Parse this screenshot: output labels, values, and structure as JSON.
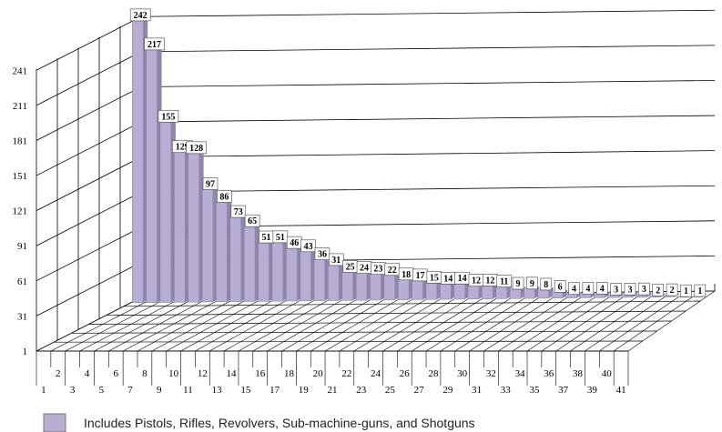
{
  "chart_data": {
    "type": "bar",
    "categories": [
      "1",
      "2",
      "3",
      "4",
      "5",
      "6",
      "7",
      "8",
      "9",
      "10",
      "11",
      "12",
      "13",
      "14",
      "15",
      "16",
      "17",
      "18",
      "19",
      "20",
      "21",
      "22",
      "23",
      "24",
      "25",
      "26",
      "27",
      "28",
      "29",
      "30",
      "31",
      "32",
      "33",
      "34",
      "35",
      "36",
      "37",
      "38",
      "39",
      "40",
      "41"
    ],
    "values": [
      242,
      217,
      155,
      129,
      128,
      97,
      86,
      73,
      65,
      51,
      51,
      46,
      43,
      36,
      31,
      25,
      24,
      23,
      22,
      18,
      17,
      15,
      14,
      14,
      12,
      12,
      11,
      9,
      9,
      8,
      6,
      4,
      4,
      4,
      3,
      3,
      3,
      2,
      2,
      1,
      1
    ],
    "yticks": [
      1,
      31,
      61,
      91,
      121,
      151,
      181,
      211,
      241
    ],
    "ylim": [
      1,
      242
    ],
    "grid": true,
    "colors": {
      "bar_front": "#b8aed4",
      "bar_side": "#8f86ad",
      "bar_top": "#d7d1ea",
      "legend_swatch": "#b8aed4"
    },
    "legend": {
      "position": "bottom",
      "entries": [
        "Includes Pistols, Rifles, Revolvers, Sub-machine-guns, and Shotguns"
      ]
    }
  }
}
